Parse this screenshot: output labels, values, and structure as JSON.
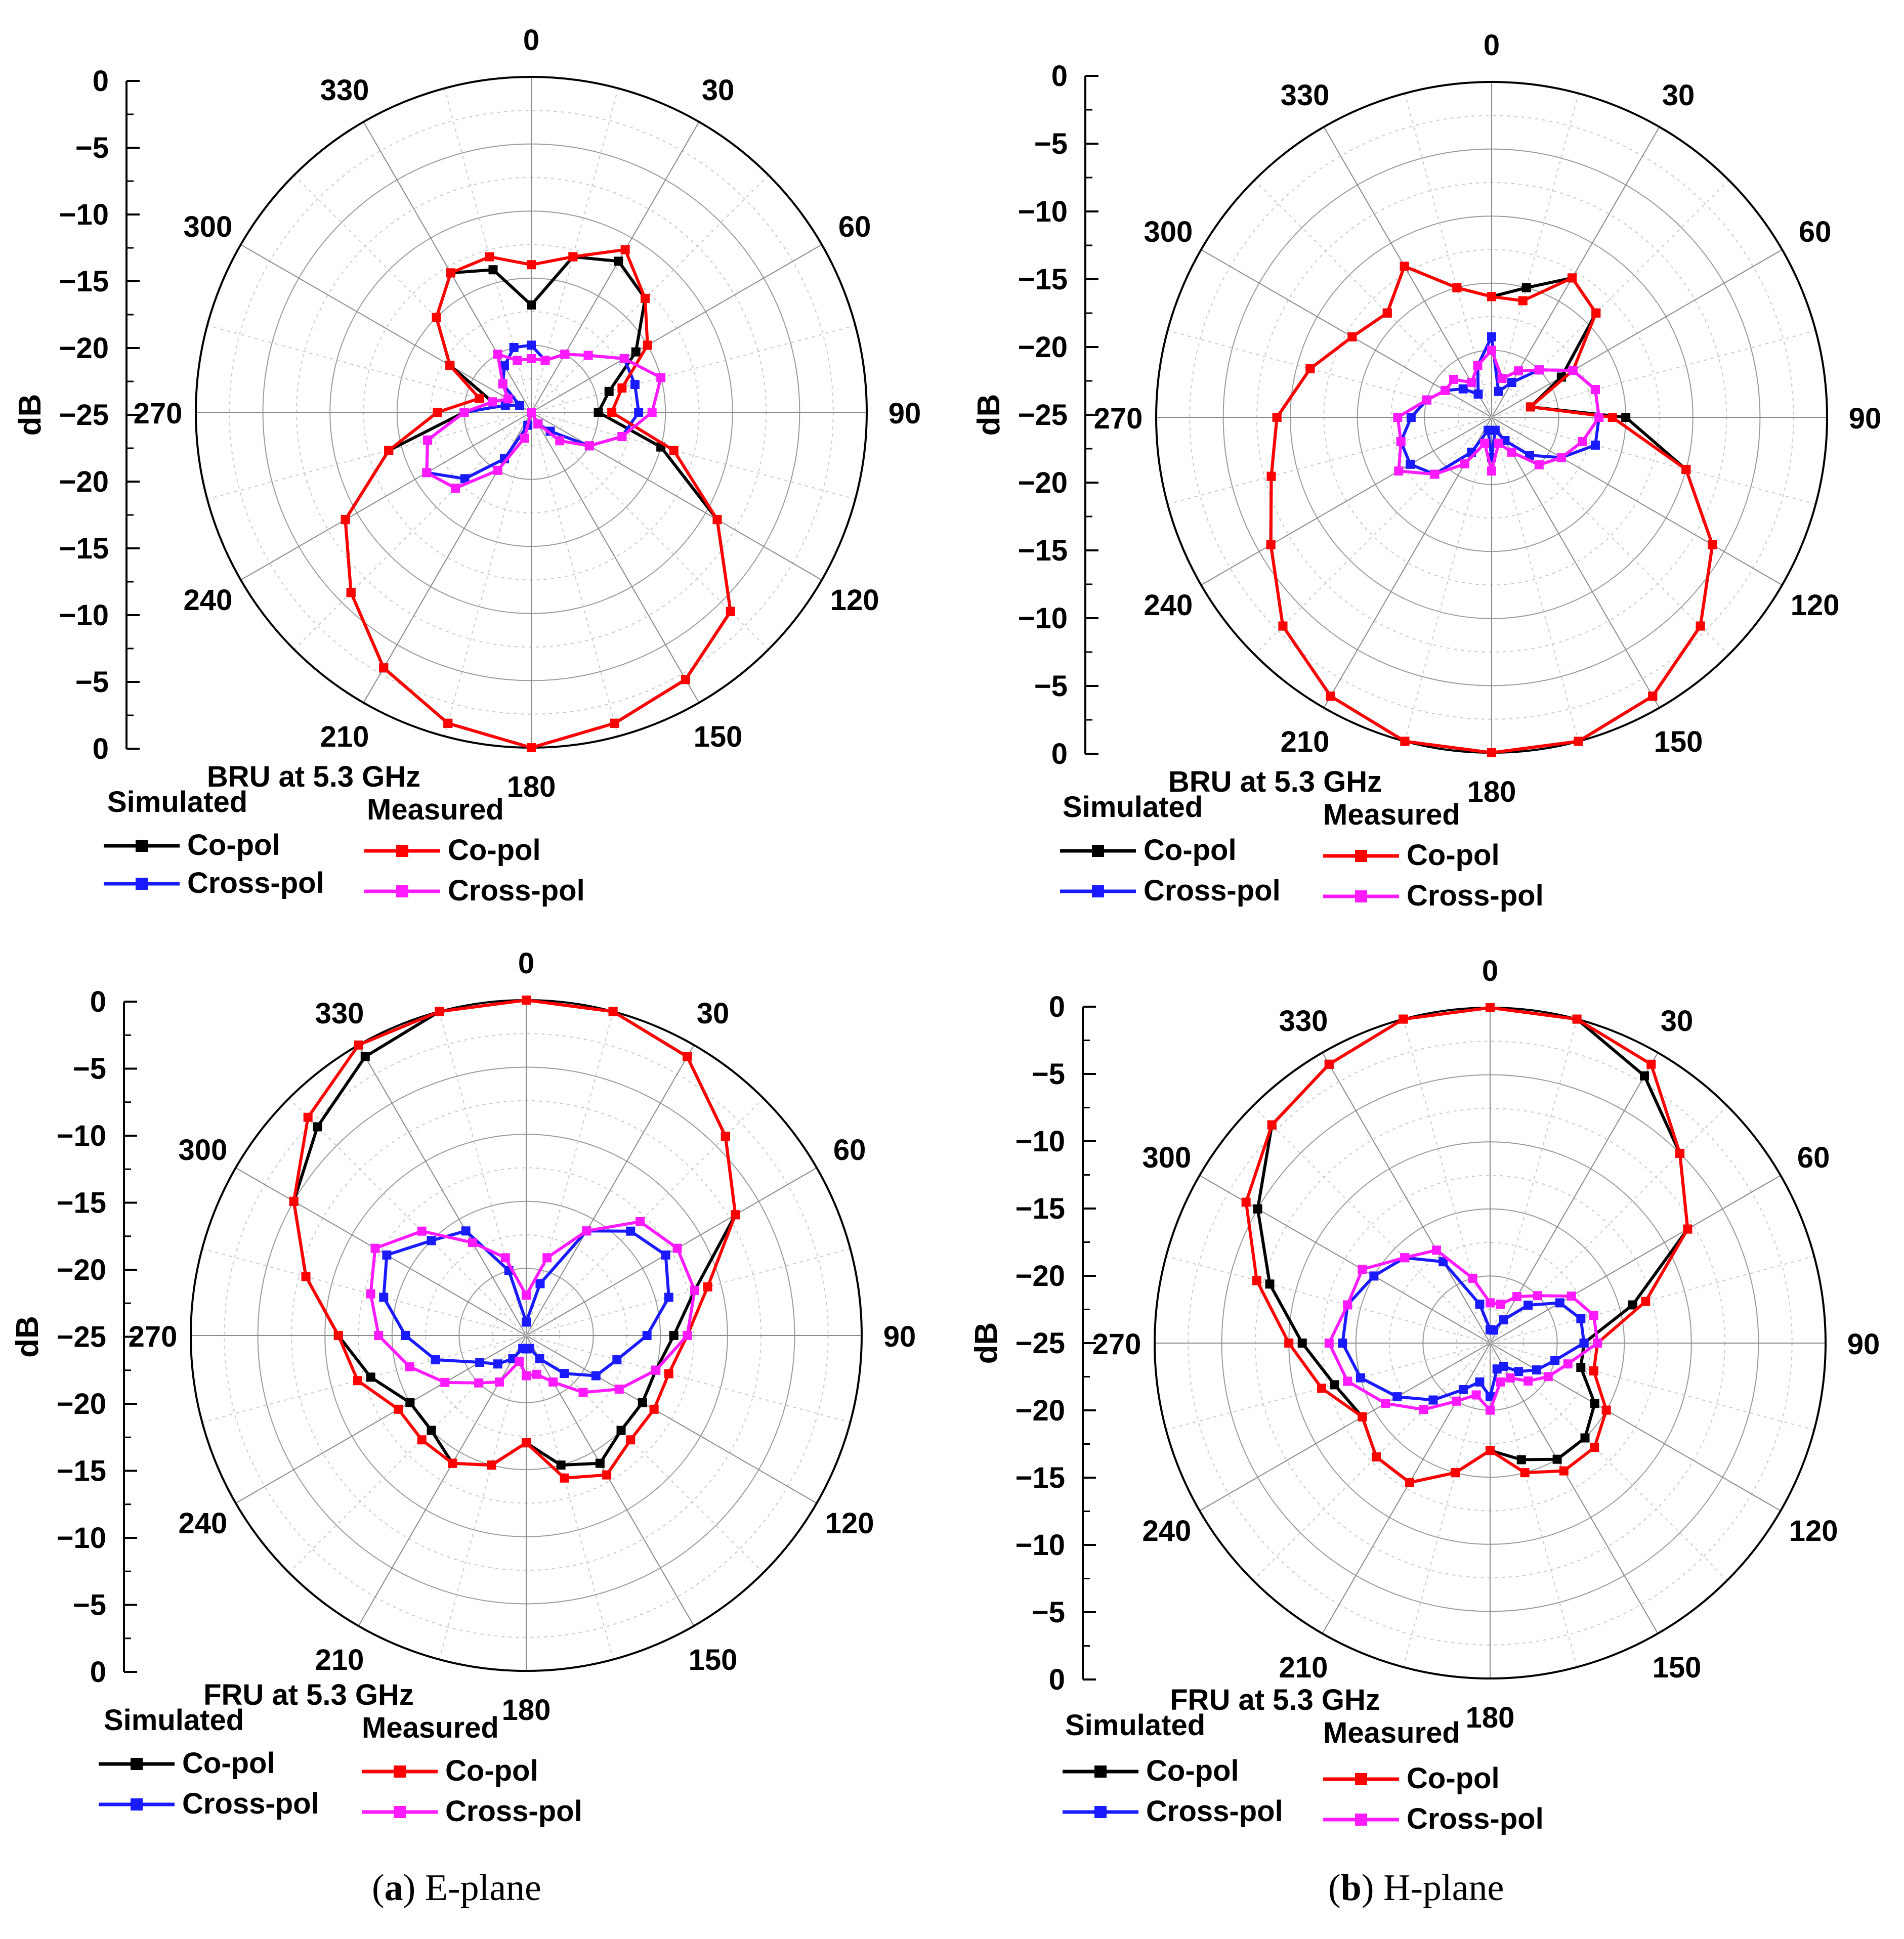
{
  "figure": {
    "captions": [
      {
        "letter": "a",
        "text": "E-plane"
      },
      {
        "letter": "b",
        "text": "H-plane"
      }
    ]
  },
  "chart_data": [
    {
      "type": "polar-line",
      "title": "BRU at 5.3 GHz",
      "ylabel": "dB",
      "r_ticks": [
        "0",
        "−5",
        "−10",
        "−15",
        "−20",
        "−25",
        "−20",
        "−15",
        "−10",
        "−5",
        "0"
      ],
      "angle_labels": [
        "0",
        "30",
        "60",
        "90",
        "120",
        "150",
        "180",
        "210",
        "240",
        "270",
        "300",
        "330"
      ],
      "rlim": [
        -25,
        0
      ],
      "grid": true,
      "legend": {
        "group_simulated": "Simulated",
        "group_measured": "Measured"
      },
      "angles_deg": [
        0,
        15,
        30,
        45,
        60,
        75,
        90,
        105,
        120,
        135,
        150,
        165,
        180,
        195,
        210,
        225,
        240,
        255,
        270,
        285,
        300,
        315,
        330,
        345
      ],
      "series": [
        {
          "name": "Co-pol",
          "group": "Simulated",
          "color": "#000000",
          "values": [
            -17,
            -13,
            -12,
            -13,
            -16,
            -19,
            -20,
            -15,
            -9,
            -4,
            -2,
            -1,
            0,
            -1,
            -3,
            -6,
            -9,
            -14,
            -20,
            -22,
            -18,
            -15,
            -13,
            -14
          ]
        },
        {
          "name": "Cross-pol",
          "group": "Simulated",
          "color": "#1a1aff",
          "values": [
            -20,
            -21,
            -20,
            -19,
            -17,
            -17,
            -17,
            -18,
            -20,
            -23,
            -24,
            -25,
            -25,
            -24,
            -21,
            -18,
            -16,
            -17,
            -20,
            -23,
            -24,
            -22,
            -21,
            -20
          ]
        },
        {
          "name": "Co-pol",
          "group": "Measured",
          "color": "#ff0000",
          "values": [
            -14,
            -13,
            -11,
            -13,
            -15,
            -18,
            -19,
            -14,
            -9,
            -4,
            -2,
            -1,
            0,
            -1,
            -3,
            -6,
            -9,
            -14,
            -18,
            -21,
            -18,
            -15,
            -13,
            -13
          ]
        },
        {
          "name": "Cross-pol",
          "group": "Measured",
          "color": "#ff1aff",
          "values": [
            -21,
            -21,
            -20,
            -19,
            -17,
            -15,
            -16,
            -18,
            -20,
            -22,
            -24,
            -25,
            -25,
            -23,
            -20,
            -17,
            -16,
            -17,
            -20,
            -22,
            -23,
            -22,
            -20,
            -21
          ]
        }
      ]
    },
    {
      "type": "polar-line",
      "title": "BRU at 5.3 GHz",
      "ylabel": "dB",
      "r_ticks": [
        "0",
        "−5",
        "−10",
        "−15",
        "−20",
        "−25",
        "−20",
        "−15",
        "−10",
        "−5",
        "0"
      ],
      "angle_labels": [
        "0",
        "30",
        "60",
        "90",
        "120",
        "150",
        "180",
        "210",
        "240",
        "270",
        "300",
        "330"
      ],
      "rlim": [
        -25,
        0
      ],
      "grid": true,
      "legend": {
        "group_simulated": "Simulated",
        "group_measured": "Measured"
      },
      "angles_deg": [
        0,
        15,
        30,
        45,
        60,
        75,
        90,
        105,
        120,
        135,
        150,
        165,
        180,
        195,
        210,
        225,
        240,
        255,
        270,
        285,
        300,
        315,
        330,
        345
      ],
      "series": [
        {
          "name": "Co-pol",
          "group": "Simulated",
          "color": "#000000",
          "values": [
            -16,
            -15,
            -13,
            -14,
            -19,
            -22,
            -15,
            -10,
            -6,
            -3,
            -1,
            0,
            0,
            0,
            -1,
            -3,
            -6,
            -8,
            -9,
            -11,
            -13,
            -14,
            -12,
            -15
          ]
        },
        {
          "name": "Cross-pol",
          "group": "Simulated",
          "color": "#1a1aff",
          "values": [
            -19,
            -23,
            -22,
            -20,
            -18,
            -17,
            -17,
            -17,
            -19,
            -21,
            -23,
            -24,
            -22,
            -24,
            -22,
            -19,
            -18,
            -18,
            -19,
            -20,
            -21,
            -22,
            -23,
            -21
          ]
        },
        {
          "name": "Co-pol",
          "group": "Measured",
          "color": "#ff0000",
          "values": [
            -16,
            -16,
            -13,
            -14,
            -18,
            -22,
            -16,
            -10,
            -6,
            -3,
            -1,
            0,
            0,
            0,
            -1,
            -3,
            -6,
            -8,
            -9,
            -11,
            -13,
            -14,
            -12,
            -15
          ]
        },
        {
          "name": "Cross-pol",
          "group": "Measured",
          "color": "#ff1aff",
          "values": [
            -20,
            -22,
            -21,
            -20,
            -18,
            -17,
            -17,
            -18,
            -19,
            -20,
            -22,
            -23,
            -21,
            -23,
            -21,
            -19,
            -17,
            -18,
            -18,
            -20,
            -21,
            -21,
            -22,
            -21
          ]
        }
      ]
    },
    {
      "type": "polar-line",
      "title": "FRU at 5.3 GHz",
      "ylabel": "dB",
      "r_ticks": [
        "0",
        "−5",
        "−10",
        "−15",
        "−20",
        "−25",
        "−20",
        "−15",
        "−10",
        "−5",
        "0"
      ],
      "angle_labels": [
        "0",
        "30",
        "60",
        "90",
        "120",
        "150",
        "180",
        "210",
        "240",
        "270",
        "300",
        "330"
      ],
      "rlim": [
        -25,
        0
      ],
      "grid": true,
      "legend": {
        "group_simulated": "Simulated",
        "group_measured": "Measured"
      },
      "angles_deg": [
        0,
        15,
        30,
        45,
        60,
        75,
        90,
        105,
        120,
        135,
        150,
        165,
        180,
        195,
        210,
        225,
        240,
        255,
        270,
        285,
        300,
        315,
        330,
        345
      ],
      "series": [
        {
          "name": "Co-pol",
          "group": "Simulated",
          "color": "#000000",
          "values": [
            0,
            0,
            -1,
            -4,
            -7,
            -12,
            -14,
            -15,
            -15,
            -15,
            -14,
            -15,
            -17,
            -15,
            -14,
            -15,
            -15,
            -13,
            -11,
            -8,
            -5,
            -3,
            -1,
            0
          ]
        },
        {
          "name": "Cross-pol",
          "group": "Simulated",
          "color": "#1a1aff",
          "values": [
            -24,
            -21,
            -16,
            -14,
            -13,
            -14,
            -16,
            -18,
            -19,
            -21,
            -23,
            -24,
            -24,
            -24,
            -23,
            -22,
            -21,
            -18,
            -16,
            -14,
            -13,
            -15,
            -16,
            -20
          ]
        },
        {
          "name": "Co-pol",
          "group": "Measured",
          "color": "#ff0000",
          "values": [
            0,
            0,
            -1,
            -4,
            -7,
            -11,
            -13,
            -14,
            -14,
            -14,
            -13,
            -14,
            -17,
            -15,
            -14,
            -14,
            -14,
            -12,
            -11,
            -8,
            -5,
            -2,
            0,
            0
          ]
        },
        {
          "name": "Cross-pol",
          "group": "Measured",
          "color": "#ff1aff",
          "values": [
            -22,
            -19,
            -16,
            -13,
            -12,
            -12,
            -13,
            -15,
            -17,
            -19,
            -21,
            -22,
            -22,
            -23,
            -21,
            -20,
            -18,
            -16,
            -14,
            -13,
            -12,
            -14,
            -17,
            -19
          ]
        }
      ]
    },
    {
      "type": "polar-line",
      "title": "FRU at 5.3 GHz",
      "ylabel": "dB",
      "r_ticks": [
        "0",
        "−5",
        "−10",
        "−15",
        "−20",
        "−25",
        "−20",
        "−15",
        "−10",
        "−5",
        "0"
      ],
      "angle_labels": [
        "0",
        "30",
        "60",
        "90",
        "120",
        "150",
        "180",
        "210",
        "240",
        "270",
        "300",
        "330"
      ],
      "rlim": [
        -25,
        0
      ],
      "grid": true,
      "legend": {
        "group_simulated": "Simulated",
        "group_measured": "Measured"
      },
      "angles_deg": [
        0,
        15,
        30,
        45,
        60,
        75,
        90,
        105,
        120,
        135,
        150,
        165,
        180,
        195,
        210,
        225,
        240,
        255,
        270,
        285,
        300,
        315,
        330,
        345
      ],
      "series": [
        {
          "name": "Co-pol",
          "group": "Simulated",
          "color": "#000000",
          "values": [
            0,
            0,
            -2,
            -5,
            -8,
            -14,
            -18,
            -18,
            -16,
            -15,
            -15,
            -16,
            -17,
            -15,
            -13,
            -13,
            -14,
            -13,
            -11,
            -8,
            -5,
            -2,
            -1,
            0
          ]
        },
        {
          "name": "Cross-pol",
          "group": "Simulated",
          "color": "#1a1aff",
          "values": [
            -24,
            -24,
            -23,
            -21,
            -19,
            -18,
            -18,
            -20,
            -21,
            -22,
            -23,
            -23,
            -21,
            -22,
            -21,
            -19,
            -17,
            -15,
            -14,
            -14,
            -15,
            -16,
            -18,
            -22
          ]
        },
        {
          "name": "Co-pol",
          "group": "Measured",
          "color": "#ff0000",
          "values": [
            0,
            0,
            -1,
            -5,
            -8,
            -13,
            -17,
            -17,
            -15,
            -14,
            -14,
            -15,
            -17,
            -15,
            -13,
            -13,
            -14,
            -12,
            -10,
            -7,
            -4,
            -2,
            -1,
            0
          ]
        },
        {
          "name": "Cross-pol",
          "group": "Measured",
          "color": "#ff1aff",
          "values": [
            -22,
            -22,
            -21,
            -20,
            -18,
            -17,
            -17,
            -19,
            -20,
            -21,
            -22,
            -22,
            -20,
            -21,
            -20,
            -18,
            -16,
            -14,
            -13,
            -14,
            -14,
            -16,
            -17,
            -20
          ]
        }
      ]
    }
  ]
}
